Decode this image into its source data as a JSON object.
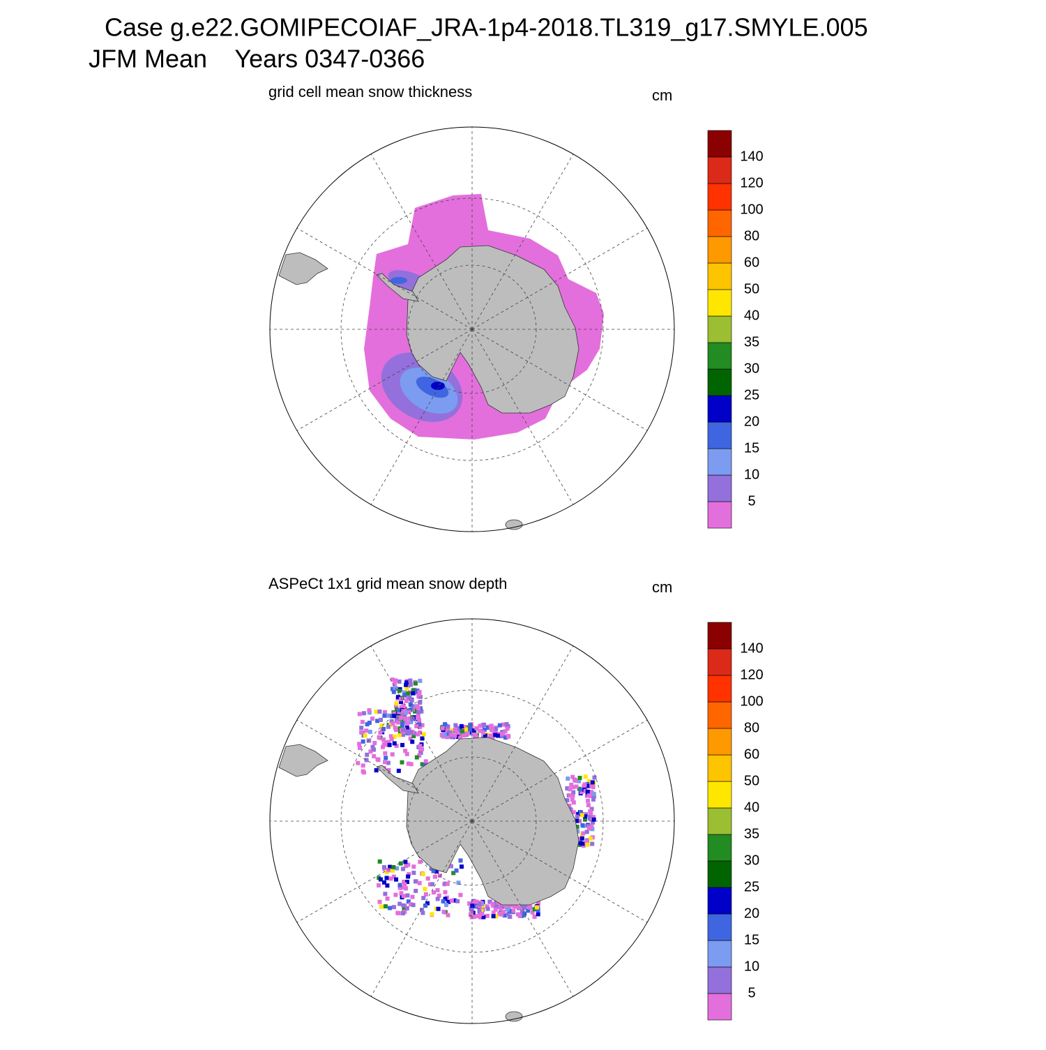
{
  "header": {
    "title": "Case g.e22.GOMIPECOIAF_JRA-1p4-2018.TL319_g17.SMYLE.005",
    "subtitle": "JFM Mean    Years 0347-0366"
  },
  "panels": [
    {
      "title": "grid cell mean snow thickness",
      "units": "cm"
    },
    {
      "title": "ASPeCt 1x1 grid mean snow depth",
      "units": "cm"
    }
  ],
  "colorbar": {
    "levels": [
      5,
      10,
      15,
      20,
      25,
      30,
      35,
      40,
      50,
      60,
      80,
      100,
      120,
      140
    ],
    "colors": [
      "#e36fdc",
      "#9370db",
      "#7b9cf0",
      "#3f66e0",
      "#0000c8",
      "#006400",
      "#228b22",
      "#9bbe32",
      "#ffe600",
      "#ffc400",
      "#ff9900",
      "#ff6600",
      "#ff3200",
      "#dc2a18",
      "#8b0000"
    ]
  }
}
